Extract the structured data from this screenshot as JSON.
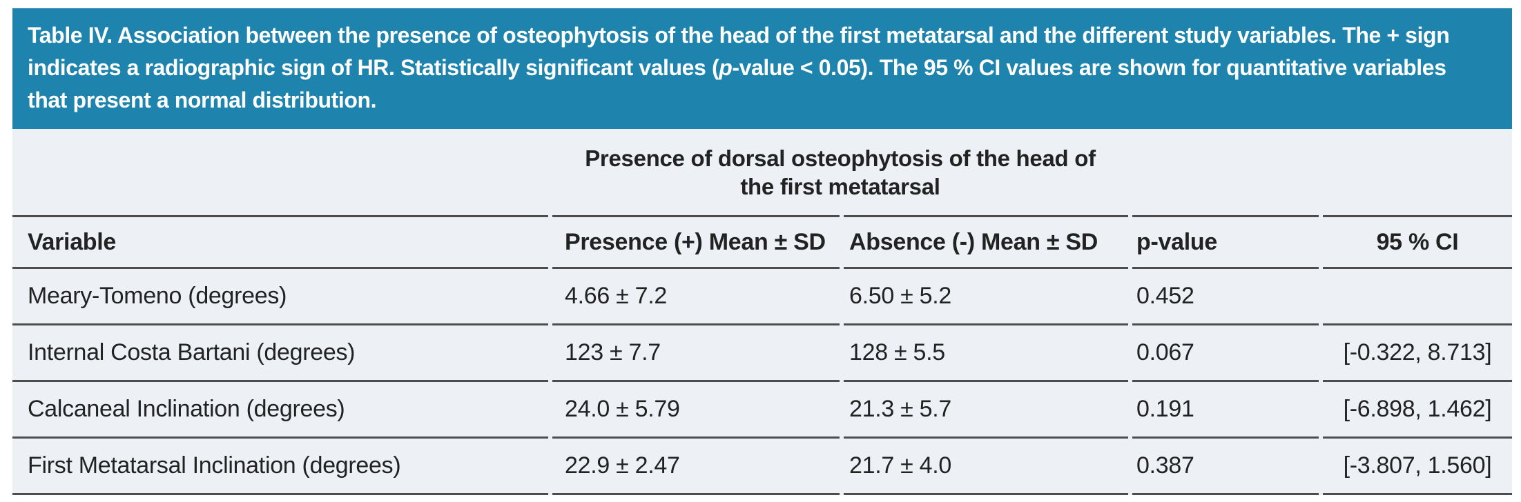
{
  "colors": {
    "banner_bg": "#1e84ad",
    "banner_text": "#ffffff",
    "table_bg": "#edf1f6",
    "rule": "#4d4d4d",
    "text": "#222222"
  },
  "banner": {
    "text_before_p": "Table IV. Association between the presence of osteophytosis of the head of the first metatarsal and the different study variables. The + sign indicates a radiographic sign of HR. Statistically significant values (",
    "p_italic": "p",
    "text_after_p": "-value < 0.05). The 95 % CI values are shown for quantitative variables that present a normal distribution."
  },
  "table": {
    "group_header_line1": "Presence of dorsal osteophytosis of the head of",
    "group_header_line2": "the first metatarsal",
    "columns": [
      "Variable",
      "Presence (+) Mean ± SD",
      "Absence (-) Mean ± SD",
      "p-value",
      "95 % CI"
    ],
    "rows": [
      {
        "variable": "Meary-Tomeno (degrees)",
        "presence": "4.66 ± 7.2",
        "absence": "6.50 ± 5.2",
        "p_value": "0.452",
        "ci": ""
      },
      {
        "variable": "Internal Costa Bartani (degrees)",
        "presence": "123 ± 7.7",
        "absence": "128 ± 5.5",
        "p_value": "0.067",
        "ci": "[-0.322, 8.713]"
      },
      {
        "variable": "Calcaneal Inclination (degrees)",
        "presence": "24.0 ± 5.79",
        "absence": "21.3 ± 5.7",
        "p_value": "0.191",
        "ci": "[-6.898, 1.462]"
      },
      {
        "variable": "First Metatarsal Inclination (degrees)",
        "presence": "22.9 ± 2.47",
        "absence": "21.7 ± 4.0",
        "p_value": "0.387",
        "ci": "[-3.807, 1.560]"
      }
    ]
  }
}
